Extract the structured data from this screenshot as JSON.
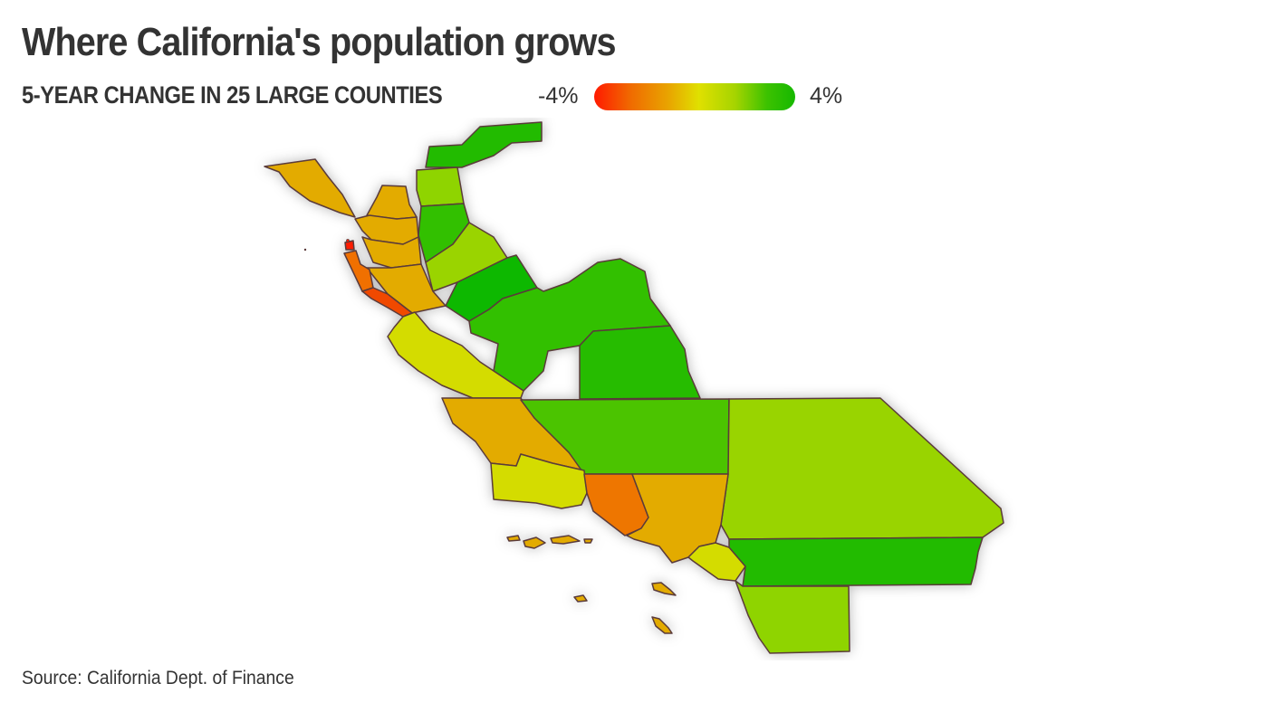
{
  "title": "Where California's population grows",
  "subtitle": "5-YEAR CHANGE IN 25 LARGE COUNTIES",
  "legend": {
    "min_label": "-4%",
    "max_label": "4%",
    "min_value": -4,
    "max_value": 4,
    "colors": [
      "#ff1a00",
      "#f06a00",
      "#e8a800",
      "#e0e000",
      "#a6d400",
      "#3cc200",
      "#16b800"
    ]
  },
  "source": "Source: California Dept. of Finance",
  "map": {
    "regions": [
      {
        "id": "county-northeast",
        "fill": "#22bb00"
      },
      {
        "id": "county-north-1",
        "fill": "#8fd400"
      },
      {
        "id": "county-north-2",
        "fill": "#33c000"
      },
      {
        "id": "county-north-3",
        "fill": "#9ad400"
      },
      {
        "id": "county-north-4",
        "fill": "#11b800"
      },
      {
        "id": "county-central-valley",
        "fill": "#33c000"
      },
      {
        "id": "county-sierra",
        "fill": "#27bc00"
      },
      {
        "id": "county-coast-north",
        "fill": "#e3ab00"
      },
      {
        "id": "county-bay-1",
        "fill": "#e3ab00"
      },
      {
        "id": "county-bay-2",
        "fill": "#e3ab00"
      },
      {
        "id": "county-bay-3",
        "fill": "#e3ab00"
      },
      {
        "id": "county-bay-4",
        "fill": "#e3ab00"
      },
      {
        "id": "county-sf",
        "fill": "#ff1a00"
      },
      {
        "id": "county-peninsula",
        "fill": "#f07000"
      },
      {
        "id": "county-santa-cruz",
        "fill": "#f04a00"
      },
      {
        "id": "county-monterey",
        "fill": "#d4dc00"
      },
      {
        "id": "county-san-luis-obispo",
        "fill": "#e3ab00"
      },
      {
        "id": "county-kern",
        "fill": "#4cc400"
      },
      {
        "id": "county-san-bernardino",
        "fill": "#99d400"
      },
      {
        "id": "county-santa-barbara",
        "fill": "#d4dc00"
      },
      {
        "id": "county-ventura",
        "fill": "#ee7600"
      },
      {
        "id": "county-los-angeles",
        "fill": "#e3ab00"
      },
      {
        "id": "county-orange",
        "fill": "#d4dc00"
      },
      {
        "id": "county-riverside",
        "fill": "#22bb00"
      },
      {
        "id": "county-san-diego",
        "fill": "#8fd400"
      },
      {
        "id": "islands",
        "fill": "#e3ab00"
      }
    ]
  }
}
